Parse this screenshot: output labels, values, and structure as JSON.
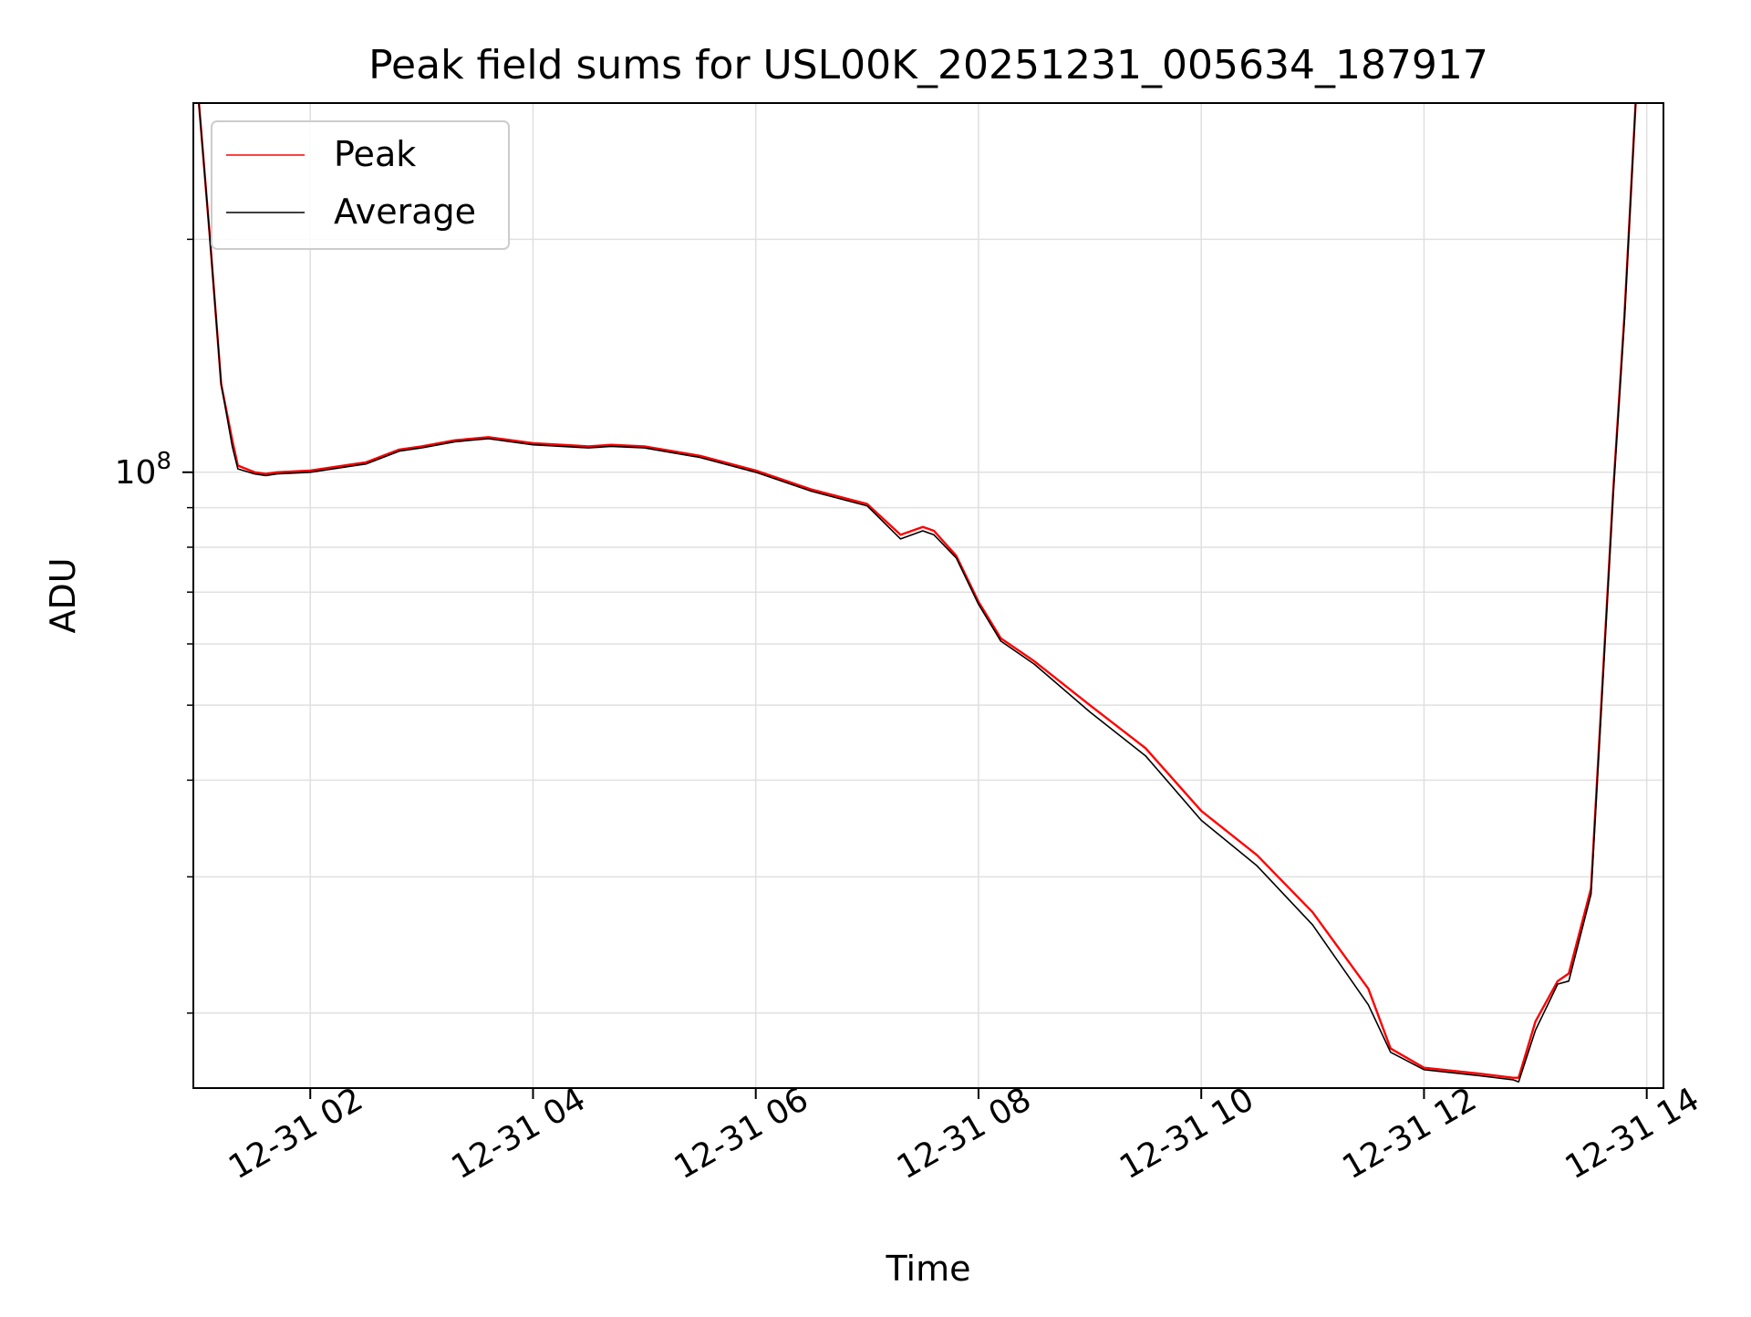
{
  "chart_data": {
    "type": "line",
    "title": "Peak field sums for USL00K_20251231_005634_187917",
    "xlabel": "Time",
    "ylabel": "ADU",
    "yscale": "log",
    "ylim": [
      16000000,
      300000000
    ],
    "xlim": [
      0.95,
      14.15
    ],
    "grid": true,
    "legend_position": "upper-left",
    "x_ticks": [
      {
        "value": 2,
        "label": "12-31 02"
      },
      {
        "value": 4,
        "label": "12-31 04"
      },
      {
        "value": 6,
        "label": "12-31 06"
      },
      {
        "value": 8,
        "label": "12-31 08"
      },
      {
        "value": 10,
        "label": "12-31 10"
      },
      {
        "value": 12,
        "label": "12-31 12"
      },
      {
        "value": 14,
        "label": "12-31 14"
      }
    ],
    "y_major_ticks": [
      {
        "value": 100000000,
        "base": "10",
        "exp": "8"
      }
    ],
    "y_minor_ticks": [
      20000000,
      30000000,
      40000000,
      50000000,
      60000000,
      70000000,
      80000000,
      90000000,
      200000000
    ],
    "series": [
      {
        "name": "Peak",
        "color": "#ff0000",
        "x": [
          1.0,
          1.1,
          1.2,
          1.3,
          1.35,
          1.5,
          1.6,
          1.7,
          2.0,
          2.5,
          2.8,
          3.0,
          3.3,
          3.6,
          4.0,
          4.5,
          4.7,
          5.0,
          5.5,
          6.0,
          6.5,
          7.0,
          7.3,
          7.5,
          7.6,
          7.8,
          8.0,
          8.2,
          8.5,
          9.0,
          9.5,
          10.0,
          10.5,
          11.0,
          11.5,
          11.7,
          12.0,
          12.5,
          12.8,
          12.85,
          13.0,
          13.2,
          13.3,
          13.5,
          13.7,
          13.8,
          13.9
        ],
        "y": [
          300000000,
          200000000,
          130000000,
          110000000,
          102000000,
          100000000,
          99500000,
          100000000,
          100500000,
          103000000,
          107000000,
          108000000,
          110000000,
          111000000,
          109000000,
          108000000,
          108500000,
          108000000,
          105000000,
          100500000,
          95000000,
          91000000,
          83000000,
          85000000,
          84000000,
          78000000,
          68000000,
          61000000,
          57000000,
          50000000,
          44000000,
          36500000,
          32000000,
          27000000,
          21500000,
          18000000,
          17000000,
          16700000,
          16500000,
          16500000,
          19500000,
          22000000,
          22500000,
          29000000,
          95000000,
          160000000,
          300000000
        ]
      },
      {
        "name": "Average",
        "color": "#000000",
        "x": [
          1.0,
          1.1,
          1.2,
          1.3,
          1.35,
          1.5,
          1.6,
          1.7,
          2.0,
          2.5,
          2.8,
          3.0,
          3.3,
          3.6,
          4.0,
          4.5,
          4.7,
          5.0,
          5.5,
          6.0,
          6.5,
          7.0,
          7.3,
          7.5,
          7.6,
          7.8,
          8.0,
          8.2,
          8.5,
          9.0,
          9.5,
          10.0,
          10.5,
          11.0,
          11.5,
          11.7,
          12.0,
          12.5,
          12.8,
          12.85,
          13.0,
          13.2,
          13.3,
          13.5,
          13.7,
          13.8,
          13.9
        ],
        "y": [
          300000000,
          200000000,
          130000000,
          108000000,
          101000000,
          99500000,
          99000000,
          99500000,
          100000000,
          102500000,
          106500000,
          107500000,
          109500000,
          110500000,
          108500000,
          107500000,
          108000000,
          107500000,
          104500000,
          100000000,
          94500000,
          90500000,
          82000000,
          84000000,
          83000000,
          77500000,
          67500000,
          60500000,
          56500000,
          49000000,
          43000000,
          35500000,
          31000000,
          26000000,
          20500000,
          17800000,
          16900000,
          16600000,
          16400000,
          16300000,
          19000000,
          21800000,
          22000000,
          28500000,
          94000000,
          158000000,
          300000000
        ]
      }
    ]
  }
}
